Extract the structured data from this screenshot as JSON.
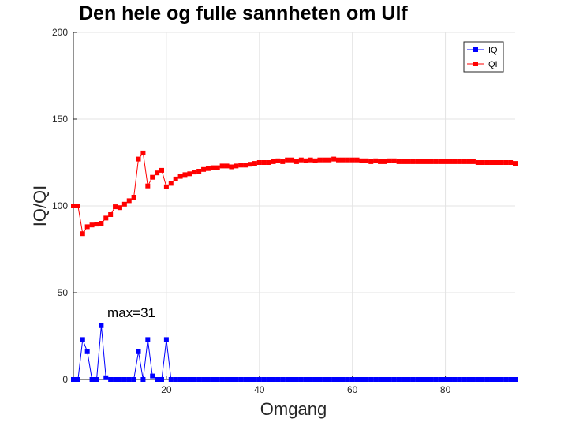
{
  "chart_data": {
    "type": "line",
    "title": "Den hele og fulle sannheten om Ulf",
    "xlabel": "Omgang",
    "ylabel": "IQ/QI",
    "xlim": [
      0,
      95
    ],
    "ylim": [
      0,
      200
    ],
    "xticks": [
      "20",
      "40",
      "60",
      "80"
    ],
    "yticks": [
      "0",
      "50",
      "100",
      "150",
      "200"
    ],
    "grid": true,
    "legend_position": "top-right",
    "series": [
      {
        "name": "IQ",
        "color": "#0000ff",
        "x": [
          0,
          1,
          2,
          3,
          4,
          5,
          6,
          7,
          8,
          9,
          10,
          11,
          12,
          13,
          14,
          15,
          16,
          17,
          18,
          19,
          20,
          21,
          22,
          23,
          24,
          25,
          26,
          27,
          28,
          29,
          30,
          31,
          32,
          33,
          34,
          35,
          36,
          37,
          38,
          39,
          40,
          41,
          42,
          43,
          44,
          45,
          46,
          47,
          48,
          49,
          50,
          51,
          52,
          53,
          54,
          55,
          56,
          57,
          58,
          59,
          60,
          61,
          62,
          63,
          64,
          65,
          66,
          67,
          68,
          69,
          70,
          71,
          72,
          73,
          74,
          75,
          76,
          77,
          78,
          79,
          80,
          81,
          82,
          83,
          84,
          85,
          86,
          87,
          88,
          89,
          90,
          91,
          92,
          93,
          94,
          95
        ],
        "values": [
          0,
          0,
          23,
          16,
          0,
          0,
          31,
          1,
          0,
          0,
          0,
          0,
          0,
          0,
          16,
          0,
          23,
          2,
          0,
          0,
          23,
          0,
          0,
          0,
          0,
          0,
          0,
          0,
          0,
          0,
          0,
          0,
          0,
          0,
          0,
          0,
          0,
          0,
          0,
          0,
          0,
          0,
          0,
          0,
          0,
          0,
          0,
          0,
          0,
          0,
          0,
          0,
          0,
          0,
          0,
          0,
          0,
          0,
          0,
          0,
          0,
          0,
          0,
          0,
          0,
          0,
          0,
          0,
          0,
          0,
          0,
          0,
          0,
          0,
          0,
          0,
          0,
          0,
          0,
          0,
          0,
          0,
          0,
          0,
          0,
          0,
          0,
          0,
          0,
          0,
          0,
          0,
          0,
          0,
          0,
          0
        ]
      },
      {
        "name": "QI",
        "color": "#ff0000",
        "x": [
          0,
          1,
          2,
          3,
          4,
          5,
          6,
          7,
          8,
          9,
          10,
          11,
          12,
          13,
          14,
          15,
          16,
          17,
          18,
          19,
          20,
          21,
          22,
          23,
          24,
          25,
          26,
          27,
          28,
          29,
          30,
          31,
          32,
          33,
          34,
          35,
          36,
          37,
          38,
          39,
          40,
          41,
          42,
          43,
          44,
          45,
          46,
          47,
          48,
          49,
          50,
          51,
          52,
          53,
          54,
          55,
          56,
          57,
          58,
          59,
          60,
          61,
          62,
          63,
          64,
          65,
          66,
          67,
          68,
          69,
          70,
          71,
          72,
          73,
          74,
          75,
          76,
          77,
          78,
          79,
          80,
          81,
          82,
          83,
          84,
          85,
          86,
          87,
          88,
          89,
          90,
          91,
          92,
          93,
          94,
          95
        ],
        "values": [
          100,
          100,
          84,
          88,
          89,
          89.5,
          90,
          93,
          95,
          99.5,
          99,
          101,
          103,
          105,
          127,
          130.5,
          111.5,
          116.5,
          119,
          120.5,
          111,
          113,
          115.5,
          117,
          118,
          118.5,
          119.5,
          120,
          121,
          121.5,
          122,
          122,
          123,
          123,
          122.5,
          123,
          123.5,
          123.5,
          124,
          124.5,
          125,
          125,
          125,
          125.5,
          126,
          125.5,
          126.5,
          126.5,
          125.5,
          126.5,
          126,
          126.5,
          126,
          126.5,
          126.5,
          126.5,
          127,
          126.5,
          126.5,
          126.5,
          126.5,
          126.5,
          126,
          126,
          125.5,
          126,
          125.5,
          125.5,
          126,
          126,
          125.5,
          125.5,
          125.5,
          125.5,
          125.5,
          125.5,
          125.5,
          125.5,
          125.5,
          125.5,
          125.5,
          125.5,
          125.5,
          125.5,
          125.5,
          125.5,
          125.5,
          125,
          125,
          125,
          125,
          125,
          125,
          125,
          125,
          124.5
        ]
      }
    ],
    "annotations": [
      {
        "text": "max=31",
        "x": 7.3,
        "y": 36
      }
    ]
  }
}
